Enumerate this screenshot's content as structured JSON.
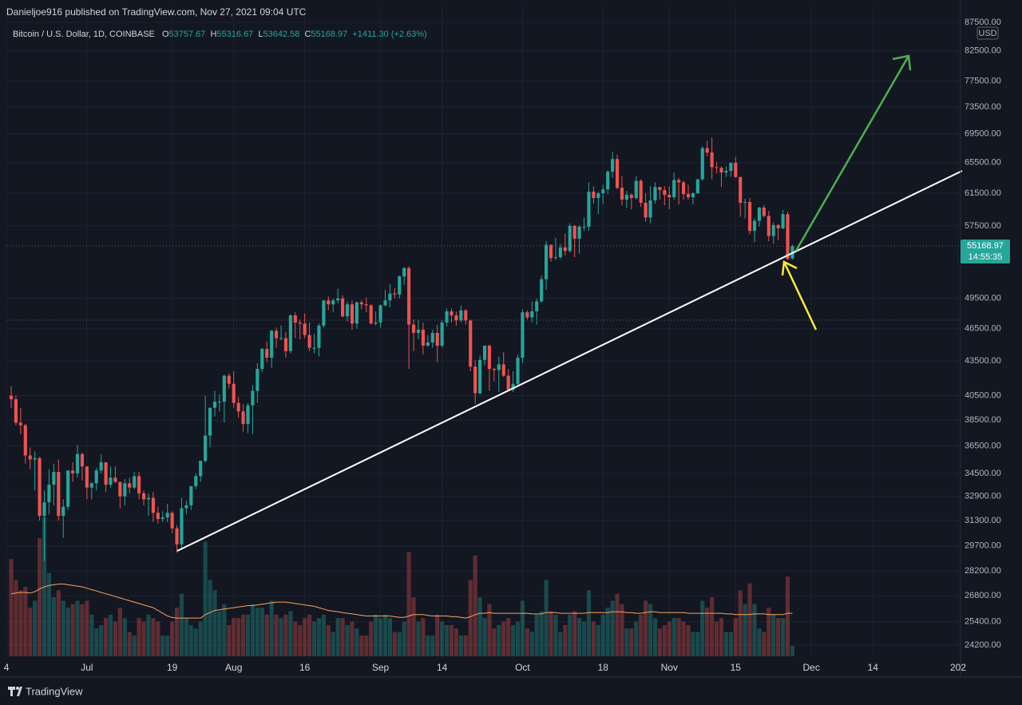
{
  "header": "Danieljoe916 published on TradingView.com, Nov 27, 2021 09:04 UTC",
  "footer": "TradingView",
  "chart_data": {
    "type": "candlestick",
    "title": "Bitcoin / U.S. Dollar, 1D, COINBASE",
    "legend_keys": {
      "open": "O",
      "high": "H",
      "low": "L",
      "close": "C"
    },
    "change": "+1411.30 (+2.63%)",
    "currency": "USD",
    "countdown": "14:55:35",
    "log_scale": true,
    "grid": true,
    "up_color": "#26a69a",
    "down_color": "#ef5350",
    "ylim": [
      23650,
      88380
    ],
    "yticks": [
      {
        "value": 87500,
        "label": "87500.00"
      },
      {
        "value": 82500,
        "label": "82500.00"
      },
      {
        "value": 77500,
        "label": "77500.00"
      },
      {
        "value": 73500,
        "label": "73500.00"
      },
      {
        "value": 69500,
        "label": "69500.00"
      },
      {
        "value": 65500,
        "label": "65500.00"
      },
      {
        "value": 61500,
        "label": "61500.00"
      },
      {
        "value": 57500,
        "label": "57500.00"
      },
      {
        "value": 49500,
        "label": "49500.00"
      },
      {
        "value": 46500,
        "label": "46500.00"
      },
      {
        "value": 43500,
        "label": "43500.00"
      },
      {
        "value": 40500,
        "label": "40500.00"
      },
      {
        "value": 38500,
        "label": "38500.00"
      },
      {
        "value": 36500,
        "label": "36500.00"
      },
      {
        "value": 34500,
        "label": "34500.00"
      },
      {
        "value": 32900,
        "label": "32900.00"
      },
      {
        "value": 31300,
        "label": "31300.00"
      },
      {
        "value": 29700,
        "label": "29700.00"
      },
      {
        "value": 28200,
        "label": "28200.00"
      },
      {
        "value": 26800,
        "label": "26800.00"
      },
      {
        "value": 25400,
        "label": "25400.00"
      },
      {
        "value": 24200,
        "label": "24200.00"
      }
    ],
    "xticks": [
      {
        "value": "2021-06-14",
        "label": "4"
      },
      {
        "value": "2021-07-01",
        "label": "Jul"
      },
      {
        "value": "2021-07-19",
        "label": "19"
      },
      {
        "value": "2021-08-01",
        "label": "Aug"
      },
      {
        "value": "2021-08-16",
        "label": "16"
      },
      {
        "value": "2021-09-01",
        "label": "Sep"
      },
      {
        "value": "2021-09-14",
        "label": "14"
      },
      {
        "value": "2021-10-01",
        "label": "Oct"
      },
      {
        "value": "2021-10-18",
        "label": "18"
      },
      {
        "value": "2021-11-01",
        "label": "Nov"
      },
      {
        "value": "2021-11-15",
        "label": "15"
      },
      {
        "value": "2021-12-01",
        "label": "Dec"
      },
      {
        "value": "2021-12-14",
        "label": "14"
      },
      {
        "value": "2022-01-01",
        "label": "202"
      }
    ],
    "x": [
      "2021-06-15",
      "2021-06-16",
      "2021-06-17",
      "2021-06-18",
      "2021-06-19",
      "2021-06-20",
      "2021-06-21",
      "2021-06-22",
      "2021-06-23",
      "2021-06-24",
      "2021-06-25",
      "2021-06-26",
      "2021-06-27",
      "2021-06-28",
      "2021-06-29",
      "2021-06-30",
      "2021-07-01",
      "2021-07-02",
      "2021-07-03",
      "2021-07-04",
      "2021-07-05",
      "2021-07-06",
      "2021-07-07",
      "2021-07-08",
      "2021-07-09",
      "2021-07-10",
      "2021-07-11",
      "2021-07-12",
      "2021-07-13",
      "2021-07-14",
      "2021-07-15",
      "2021-07-16",
      "2021-07-17",
      "2021-07-18",
      "2021-07-19",
      "2021-07-20",
      "2021-07-21",
      "2021-07-22",
      "2021-07-23",
      "2021-07-24",
      "2021-07-25",
      "2021-07-26",
      "2021-07-27",
      "2021-07-28",
      "2021-07-29",
      "2021-07-30",
      "2021-07-31",
      "2021-08-01",
      "2021-08-02",
      "2021-08-03",
      "2021-08-04",
      "2021-08-05",
      "2021-08-06",
      "2021-08-07",
      "2021-08-08",
      "2021-08-09",
      "2021-08-10",
      "2021-08-11",
      "2021-08-12",
      "2021-08-13",
      "2021-08-14",
      "2021-08-15",
      "2021-08-16",
      "2021-08-17",
      "2021-08-18",
      "2021-08-19",
      "2021-08-20",
      "2021-08-21",
      "2021-08-22",
      "2021-08-23",
      "2021-08-24",
      "2021-08-25",
      "2021-08-26",
      "2021-08-27",
      "2021-08-28",
      "2021-08-29",
      "2021-08-30",
      "2021-08-31",
      "2021-09-01",
      "2021-09-02",
      "2021-09-03",
      "2021-09-04",
      "2021-09-05",
      "2021-09-06",
      "2021-09-07",
      "2021-09-08",
      "2021-09-09",
      "2021-09-10",
      "2021-09-11",
      "2021-09-12",
      "2021-09-13",
      "2021-09-14",
      "2021-09-15",
      "2021-09-16",
      "2021-09-17",
      "2021-09-18",
      "2021-09-19",
      "2021-09-20",
      "2021-09-21",
      "2021-09-22",
      "2021-09-23",
      "2021-09-24",
      "2021-09-25",
      "2021-09-26",
      "2021-09-27",
      "2021-09-28",
      "2021-09-29",
      "2021-09-30",
      "2021-10-01",
      "2021-10-02",
      "2021-10-03",
      "2021-10-04",
      "2021-10-05",
      "2021-10-06",
      "2021-10-07",
      "2021-10-08",
      "2021-10-09",
      "2021-10-10",
      "2021-10-11",
      "2021-10-12",
      "2021-10-13",
      "2021-10-14",
      "2021-10-15",
      "2021-10-16",
      "2021-10-17",
      "2021-10-18",
      "2021-10-19",
      "2021-10-20",
      "2021-10-21",
      "2021-10-22",
      "2021-10-23",
      "2021-10-24",
      "2021-10-25",
      "2021-10-26",
      "2021-10-27",
      "2021-10-28",
      "2021-10-29",
      "2021-10-30",
      "2021-10-31",
      "2021-11-01",
      "2021-11-02",
      "2021-11-03",
      "2021-11-04",
      "2021-11-05",
      "2021-11-06",
      "2021-11-07",
      "2021-11-08",
      "2021-11-09",
      "2021-11-10",
      "2021-11-11",
      "2021-11-12",
      "2021-11-13",
      "2021-11-14",
      "2021-11-15",
      "2021-11-16",
      "2021-11-17",
      "2021-11-18",
      "2021-11-19",
      "2021-11-20",
      "2021-11-21",
      "2021-11-22",
      "2021-11-23",
      "2021-11-24",
      "2021-11-25",
      "2021-11-26",
      "2021-11-27"
    ],
    "open": [
      40500,
      40200,
      38300,
      38100,
      35800,
      35500,
      35600,
      31600,
      32500,
      33700,
      34600,
      31600,
      32200,
      34700,
      34500,
      35900,
      35000,
      33500,
      33800,
      34700,
      35300,
      33700,
      34200,
      33900,
      32900,
      33800,
      33500,
      34300,
      33100,
      32700,
      32800,
      31800,
      31400,
      31500,
      31800,
      30800,
      29800,
      32100,
      32300,
      33600,
      34300,
      35400,
      37300,
      39500,
      40000,
      40000,
      42200,
      41500,
      39900,
      39200,
      38200,
      39700,
      40900,
      42800,
      44600,
      43800,
      46300,
      45600,
      45600,
      44400,
      47800,
      47100,
      47000,
      45900,
      44700,
      44700,
      46800,
      49300,
      48900,
      49300,
      49500,
      47700,
      48900,
      47000,
      49100,
      48900,
      48800,
      47000,
      47100,
      48800,
      49300,
      50000,
      49900,
      51800,
      52700,
      46900,
      46100,
      46400,
      44900,
      45200,
      46100,
      44900,
      47100,
      48200,
      47800,
      47300,
      48300,
      47300,
      43000,
      40700,
      43600,
      44900,
      42800,
      42700,
      43200,
      42200,
      41000,
      41500,
      43800,
      48100,
      47600,
      48200,
      49200,
      51500,
      55300,
      53800,
      53900,
      55000,
      54600,
      57500,
      56000,
      57400,
      57400,
      61700,
      60900,
      61500,
      62000,
      64300,
      66000,
      62200,
      60700,
      61300,
      60900,
      63100,
      60300,
      58500,
      60600,
      62300,
      61900,
      61300,
      61000,
      63200,
      62900,
      61400,
      61000,
      61500,
      63300,
      67500,
      66900,
      64900,
      64800,
      64200,
      64400,
      65500,
      63600,
      60300,
      60400,
      56900,
      58100,
      59700,
      58700,
      56300,
      57600,
      57200,
      58900,
      53757.67
    ],
    "high": [
      41300,
      40500,
      39500,
      38200,
      36400,
      36100,
      35700,
      33300,
      34800,
      35200,
      35500,
      32700,
      34700,
      35300,
      36600,
      36000,
      35000,
      33900,
      34900,
      35900,
      35300,
      35000,
      35000,
      33900,
      34100,
      34200,
      34600,
      34600,
      33300,
      33100,
      33200,
      32200,
      31900,
      32400,
      31900,
      31000,
      32800,
      32600,
      33600,
      34500,
      35400,
      40500,
      39500,
      40900,
      40600,
      42300,
      42400,
      42600,
      40400,
      39800,
      39900,
      41400,
      43300,
      44700,
      45300,
      46400,
      46600,
      46800,
      46200,
      47900,
      48100,
      47400,
      48000,
      47100,
      46000,
      47000,
      49300,
      49700,
      49500,
      50500,
      49800,
      49200,
      49300,
      49200,
      49300,
      49600,
      48900,
      48200,
      48900,
      50400,
      51000,
      50600,
      51900,
      52800,
      52900,
      47400,
      47400,
      47100,
      45900,
      46400,
      46900,
      47300,
      48500,
      48500,
      48200,
      48800,
      48400,
      47400,
      43600,
      44000,
      44900,
      45000,
      42900,
      43900,
      44300,
      42800,
      42600,
      44100,
      48400,
      48300,
      49200,
      49500,
      51900,
      55700,
      55300,
      56100,
      55400,
      56600,
      57800,
      57600,
      57600,
      58500,
      62900,
      62400,
      61700,
      62600,
      64500,
      67000,
      66600,
      63700,
      61800,
      61500,
      63700,
      63300,
      61500,
      62400,
      62900,
      62300,
      62400,
      62400,
      64200,
      63500,
      63100,
      62600,
      61600,
      63300,
      67800,
      68500,
      69000,
      65600,
      65000,
      65000,
      65500,
      66300,
      63600,
      60800,
      60900,
      58400,
      59800,
      60000,
      59300,
      57900,
      57700,
      59400,
      59200,
      55316.67
    ],
    "low": [
      39500,
      38100,
      37400,
      35200,
      34800,
      33300,
      31300,
      28800,
      31700,
      32300,
      31300,
      30200,
      32000,
      33900,
      34200,
      34000,
      32700,
      32700,
      33300,
      34500,
      33200,
      33500,
      33800,
      32100,
      32300,
      33100,
      33400,
      32700,
      32300,
      31600,
      31200,
      31100,
      31200,
      31200,
      30500,
      29300,
      29500,
      31700,
      32000,
      33400,
      33900,
      35300,
      36400,
      38800,
      39200,
      38300,
      41100,
      39500,
      38700,
      37600,
      37500,
      37400,
      39900,
      42500,
      43400,
      42900,
      44700,
      45400,
      43800,
      44200,
      45600,
      45500,
      45600,
      44400,
      44200,
      43900,
      46600,
      48300,
      48100,
      49000,
      47600,
      47200,
      46400,
      46500,
      48400,
      48100,
      46900,
      46800,
      46600,
      48700,
      48600,
      49500,
      49500,
      50900,
      42800,
      44400,
      45500,
      44100,
      44800,
      44700,
      43400,
      44700,
      46700,
      47100,
      46800,
      47100,
      46900,
      42600,
      39800,
      40600,
      43100,
      40900,
      41700,
      40800,
      42100,
      40900,
      40800,
      41400,
      43300,
      47400,
      47100,
      46900,
      49100,
      50400,
      53400,
      53600,
      53700,
      54100,
      54400,
      53900,
      54300,
      56900,
      56900,
      60200,
      58900,
      60100,
      61400,
      63500,
      62000,
      60000,
      59700,
      59500,
      60700,
      59800,
      58000,
      57800,
      60200,
      60700,
      60000,
      59500,
      60700,
      60100,
      60700,
      60700,
      60100,
      61400,
      63100,
      66400,
      63300,
      64100,
      62300,
      63600,
      63600,
      63500,
      58600,
      58400,
      56500,
      55600,
      57400,
      58500,
      55700,
      55400,
      55800,
      57100,
      53600,
      53642.58
    ],
    "close": [
      40200,
      38300,
      38100,
      35800,
      35500,
      35600,
      31600,
      32500,
      33700,
      34600,
      31600,
      32200,
      34700,
      34500,
      35900,
      35000,
      33500,
      33800,
      34700,
      35300,
      33700,
      34200,
      33900,
      32900,
      33800,
      33500,
      34300,
      33100,
      32700,
      32800,
      31800,
      31400,
      31500,
      31800,
      30800,
      29800,
      32100,
      32300,
      33600,
      34300,
      35400,
      37300,
      39500,
      40000,
      40000,
      42200,
      41500,
      39900,
      39200,
      38200,
      39700,
      40900,
      42800,
      44600,
      43800,
      46300,
      45600,
      45600,
      44400,
      47800,
      47100,
      47000,
      45900,
      44700,
      44700,
      46800,
      49300,
      48900,
      49300,
      49500,
      47700,
      48900,
      47000,
      49100,
      48900,
      48800,
      47000,
      47100,
      48800,
      49300,
      50000,
      49900,
      51800,
      52700,
      46900,
      46100,
      46400,
      44900,
      45200,
      46100,
      44900,
      47100,
      48200,
      47800,
      47300,
      48300,
      47300,
      43000,
      40700,
      43600,
      44900,
      42800,
      42700,
      43200,
      42200,
      41000,
      41500,
      43800,
      48100,
      47600,
      48200,
      49200,
      51500,
      55300,
      53800,
      53900,
      55000,
      54600,
      57500,
      56000,
      57400,
      57400,
      61700,
      60900,
      61500,
      62000,
      64300,
      66000,
      62200,
      60700,
      61300,
      60900,
      63100,
      60300,
      58500,
      60600,
      62300,
      61900,
      61300,
      61000,
      63200,
      62900,
      61400,
      61000,
      61500,
      63300,
      67500,
      66900,
      64900,
      64800,
      64200,
      64400,
      65500,
      63600,
      60300,
      60400,
      56900,
      58100,
      59700,
      58700,
      56300,
      57600,
      57200,
      58900,
      53700,
      55168.97
    ],
    "volume": [
      140,
      110,
      95,
      100,
      70,
      80,
      170,
      200,
      120,
      85,
      95,
      80,
      70,
      75,
      80,
      75,
      80,
      60,
      40,
      45,
      55,
      60,
      50,
      70,
      55,
      35,
      30,
      55,
      50,
      60,
      55,
      50,
      30,
      30,
      50,
      70,
      90,
      55,
      45,
      40,
      50,
      165,
      110,
      95,
      65,
      75,
      45,
      55,
      55,
      60,
      60,
      75,
      70,
      70,
      60,
      80,
      60,
      55,
      60,
      65,
      50,
      45,
      55,
      60,
      50,
      55,
      60,
      45,
      35,
      55,
      55,
      45,
      50,
      40,
      30,
      30,
      50,
      60,
      55,
      60,
      55,
      35,
      35,
      50,
      150,
      85,
      50,
      55,
      30,
      30,
      60,
      50,
      45,
      45,
      40,
      30,
      30,
      110,
      145,
      85,
      55,
      75,
      40,
      45,
      50,
      55,
      45,
      50,
      80,
      40,
      35,
      60,
      65,
      110,
      65,
      60,
      35,
      45,
      60,
      65,
      55,
      50,
      95,
      50,
      45,
      60,
      70,
      80,
      90,
      75,
      40,
      40,
      50,
      60,
      80,
      75,
      55,
      40,
      45,
      50,
      55,
      55,
      50,
      45,
      35,
      35,
      80,
      70,
      85,
      50,
      55,
      35,
      35,
      55,
      95,
      75,
      105,
      75,
      40,
      35,
      70,
      60,
      55,
      55,
      115,
      15
    ],
    "volume_ma": [
      90,
      91,
      92,
      92,
      91,
      93,
      97,
      100,
      102,
      103,
      104,
      104,
      103,
      102,
      101,
      100,
      98,
      96,
      94,
      92,
      90,
      88,
      86,
      84,
      82,
      80,
      78,
      76,
      74,
      72,
      70,
      66,
      62,
      58,
      56,
      55,
      55,
      55,
      55,
      55,
      55,
      60,
      63,
      66,
      67,
      68,
      69,
      70,
      71,
      72,
      73,
      73,
      74,
      75,
      76,
      77,
      78,
      78,
      78,
      77,
      76,
      75,
      74,
      73,
      72,
      70,
      68,
      66,
      65,
      64,
      63,
      62,
      61,
      60,
      59,
      58,
      58,
      58,
      58,
      58,
      58,
      57,
      56,
      56,
      58,
      60,
      60,
      60,
      59,
      58,
      58,
      58,
      58,
      57,
      57,
      56,
      55,
      57,
      60,
      62,
      62,
      63,
      62,
      62,
      62,
      62,
      62,
      62,
      62,
      62,
      61,
      61,
      61,
      63,
      63,
      63,
      62,
      62,
      62,
      62,
      62,
      62,
      63,
      63,
      63,
      63,
      63,
      64,
      64,
      64,
      63,
      63,
      62,
      62,
      63,
      64,
      64,
      63,
      63,
      63,
      63,
      63,
      63,
      62,
      62,
      62,
      62,
      62,
      62,
      62,
      62,
      61,
      61,
      60,
      60,
      60,
      60,
      61,
      61,
      61,
      60,
      60,
      60,
      60,
      62,
      62
    ]
  }
}
